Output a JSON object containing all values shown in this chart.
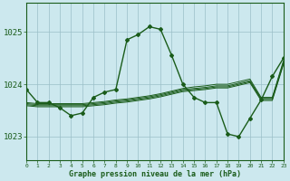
{
  "title": "Graphe pression niveau de la mer (hPa)",
  "xlabel_hours": [
    0,
    1,
    2,
    3,
    4,
    5,
    6,
    7,
    8,
    9,
    10,
    11,
    12,
    13,
    14,
    15,
    16,
    17,
    18,
    19,
    20,
    21,
    22,
    23
  ],
  "yticks": [
    1023,
    1024,
    1025
  ],
  "ylim": [
    1022.55,
    1025.55
  ],
  "xlim": [
    0,
    23
  ],
  "bg_color": "#cce8ee",
  "grid_color": "#9bbfc8",
  "line_color": "#1a5c1a",
  "main_line": [
    1023.9,
    1023.65,
    1023.65,
    1023.55,
    1023.4,
    1023.45,
    1023.75,
    1023.85,
    1023.9,
    1024.85,
    1024.95,
    1025.1,
    1025.05,
    1024.55,
    1024.0,
    1023.75,
    1023.65,
    1023.65,
    1023.05,
    1023.0,
    1023.35,
    1023.7,
    1024.15,
    1024.5
  ],
  "spread_lines": [
    [
      1023.65,
      1023.63,
      1023.63,
      1023.63,
      1023.63,
      1023.63,
      1023.65,
      1023.67,
      1023.7,
      1023.72,
      1023.75,
      1023.78,
      1023.82,
      1023.87,
      1023.92,
      1023.95,
      1023.97,
      1024.0,
      1024.0,
      1024.05,
      1024.1,
      1023.75,
      1023.75,
      1024.45
    ],
    [
      1023.63,
      1023.61,
      1023.61,
      1023.61,
      1023.61,
      1023.61,
      1023.63,
      1023.65,
      1023.68,
      1023.7,
      1023.73,
      1023.76,
      1023.8,
      1023.85,
      1023.9,
      1023.92,
      1023.94,
      1023.97,
      1023.97,
      1024.02,
      1024.07,
      1023.73,
      1023.73,
      1024.42
    ],
    [
      1023.61,
      1023.59,
      1023.59,
      1023.59,
      1023.59,
      1023.59,
      1023.61,
      1023.63,
      1023.66,
      1023.68,
      1023.71,
      1023.74,
      1023.78,
      1023.83,
      1023.88,
      1023.9,
      1023.92,
      1023.95,
      1023.95,
      1024.0,
      1024.05,
      1023.71,
      1023.71,
      1024.4
    ],
    [
      1023.59,
      1023.57,
      1023.57,
      1023.57,
      1023.57,
      1023.57,
      1023.59,
      1023.61,
      1023.64,
      1023.66,
      1023.69,
      1023.72,
      1023.76,
      1023.81,
      1023.86,
      1023.88,
      1023.9,
      1023.93,
      1023.93,
      1023.98,
      1024.03,
      1023.69,
      1023.69,
      1024.38
    ]
  ]
}
